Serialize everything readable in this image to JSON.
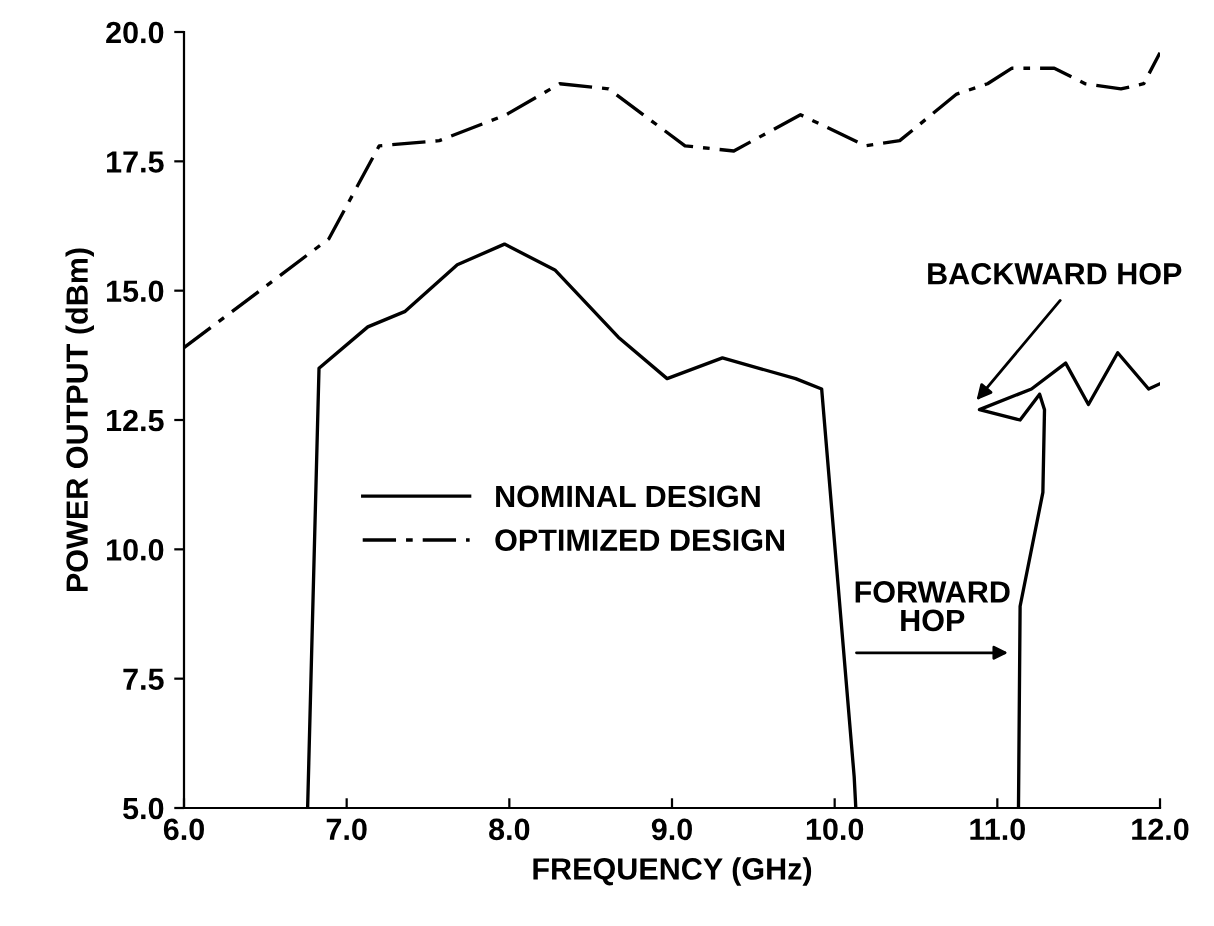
{
  "chart_data": {
    "type": "line",
    "xlabel": "FREQUENCY (GHz)",
    "ylabel": "POWER OUTPUT (dBm)",
    "xlim": [
      6.0,
      12.0
    ],
    "ylim": [
      5.0,
      20.0
    ],
    "xticks": [
      {
        "value": 6,
        "label": "6.0"
      },
      {
        "value": 7,
        "label": "7.0"
      },
      {
        "value": 8,
        "label": "8.0"
      },
      {
        "value": 9,
        "label": "9.0"
      },
      {
        "value": 10,
        "label": "10.0"
      },
      {
        "value": 11,
        "label": "11.0"
      },
      {
        "value": 12,
        "label": "12.0"
      }
    ],
    "yticks": [
      {
        "value": 5,
        "label": "5.0"
      },
      7.5,
      {
        "value": 10,
        "label": "10.0"
      },
      12.5,
      {
        "value": 15,
        "label": "15.0"
      },
      17.5,
      {
        "value": 20,
        "label": "20.0"
      }
    ],
    "grid": false,
    "legend": "center",
    "marker": "none",
    "series": [
      {
        "name": "NOMINAL DESIGN",
        "color": "#000000",
        "line_style": "solid",
        "x": [
          6.76,
          6.83,
          7.13,
          7.36,
          7.68,
          7.97,
          8.28,
          8.67,
          8.97,
          9.31,
          9.76,
          9.92,
          10.12,
          10.13,
          10.6,
          11.13,
          11.14,
          11.28,
          11.29,
          11.26,
          11.14,
          10.89,
          11.21,
          11.42,
          11.56,
          11.74,
          11.93,
          12.0
        ],
        "values": [
          5.0,
          13.5,
          14.3,
          14.6,
          15.5,
          15.9,
          15.4,
          14.1,
          13.3,
          13.7,
          13.3,
          13.1,
          5.6,
          5.0,
          null,
          5.0,
          8.9,
          11.1,
          12.7,
          13.0,
          12.5,
          12.7,
          13.1,
          13.6,
          12.8,
          13.8,
          13.1,
          13.2
        ]
      },
      {
        "name": "OPTIMIZED DESIGN",
        "color": "#000000",
        "line_style": "dashdot",
        "x": [
          6.0,
          6.89,
          7.2,
          7.57,
          7.98,
          8.31,
          8.61,
          9.08,
          9.38,
          9.79,
          10.19,
          10.4,
          10.75,
          10.94,
          11.09,
          11.35,
          11.54,
          11.76,
          11.9,
          12.0
        ],
        "values": [
          13.9,
          16.0,
          17.8,
          17.9,
          18.4,
          19.0,
          18.9,
          17.8,
          17.7,
          18.4,
          17.8,
          17.9,
          18.8,
          19.0,
          19.3,
          19.3,
          19.0,
          18.9,
          19.0,
          19.6
        ]
      }
    ],
    "annotations": [
      {
        "text": "BACKWARD HOP",
        "x": 10.85,
        "y": 12.8
      },
      {
        "text": "FORWARD\nHOP",
        "x": 11.1,
        "y": 8.0
      }
    ]
  }
}
